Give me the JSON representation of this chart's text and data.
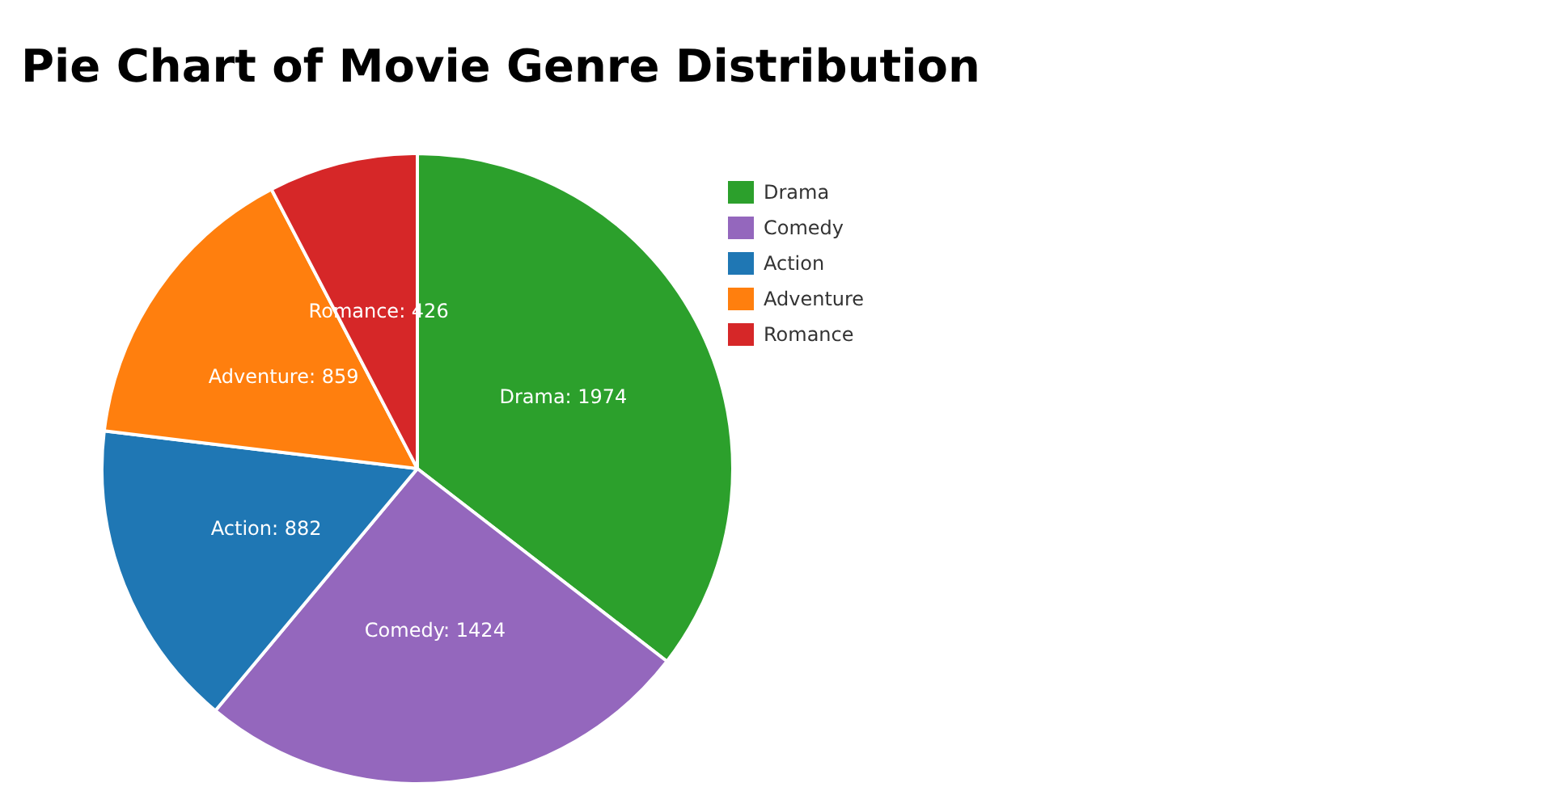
{
  "chart_data": {
    "type": "pie",
    "title": "Pie Chart of Movie Genre Distribution",
    "categories": [
      "Drama",
      "Comedy",
      "Action",
      "Adventure",
      "Romance"
    ],
    "values": [
      1974,
      1424,
      882,
      859,
      426
    ],
    "colors": [
      "#2ca02c",
      "#9467bd",
      "#1f77b4",
      "#ff7f0e",
      "#d62728"
    ],
    "value_labels": [
      "Drama: 1974",
      "Comedy: 1424",
      "Action: 882",
      "Adventure: 859",
      "Romance: 426"
    ],
    "legend": "top right"
  }
}
